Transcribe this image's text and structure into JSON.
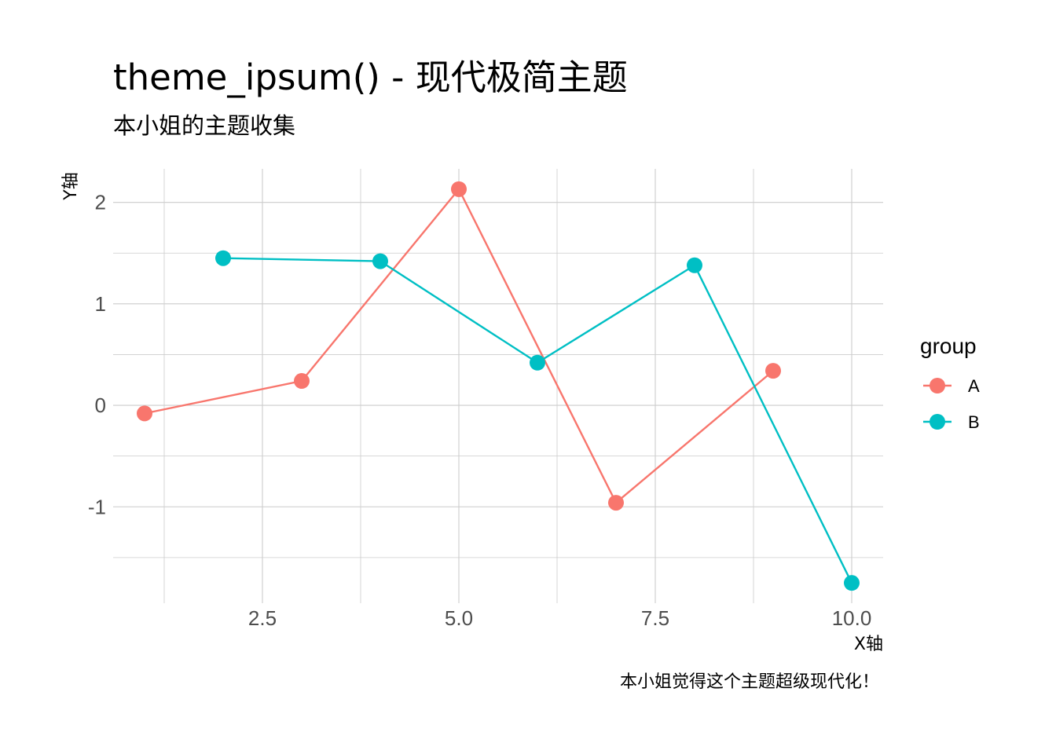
{
  "chart_data": {
    "type": "line",
    "title": "theme_ipsum() - 现代极简主题",
    "subtitle": "本小姐的主题收集",
    "caption": "本小姐觉得这个主题超级现代化！",
    "xlabel": "X轴",
    "ylabel": "Y轴",
    "xlim": [
      0.6,
      10.4
    ],
    "ylim": [
      -1.95,
      2.33
    ],
    "x_ticks": [
      2.5,
      5.0,
      7.5,
      10.0
    ],
    "x_tick_labels": [
      "2.5",
      "5.0",
      "7.5",
      "10.0"
    ],
    "x_minor_ticks": [
      1.25,
      3.75,
      6.25,
      8.75
    ],
    "y_ticks": [
      -1,
      0,
      1,
      2
    ],
    "y_tick_labels": [
      "-1",
      "0",
      "1",
      "2"
    ],
    "y_minor_ticks": [
      -1.5,
      -0.5,
      0.5,
      1.5
    ],
    "grid": true,
    "legend": {
      "title": "group",
      "position": "right"
    },
    "series": [
      {
        "name": "A",
        "color": "#F8766D",
        "x": [
          1,
          3,
          5,
          7,
          9
        ],
        "y": [
          -0.08,
          0.24,
          2.13,
          -0.96,
          0.34
        ]
      },
      {
        "name": "B",
        "color": "#00BFC4",
        "x": [
          2,
          4,
          6,
          8,
          10
        ],
        "y": [
          1.45,
          1.42,
          0.42,
          1.38,
          -1.75
        ]
      }
    ]
  }
}
